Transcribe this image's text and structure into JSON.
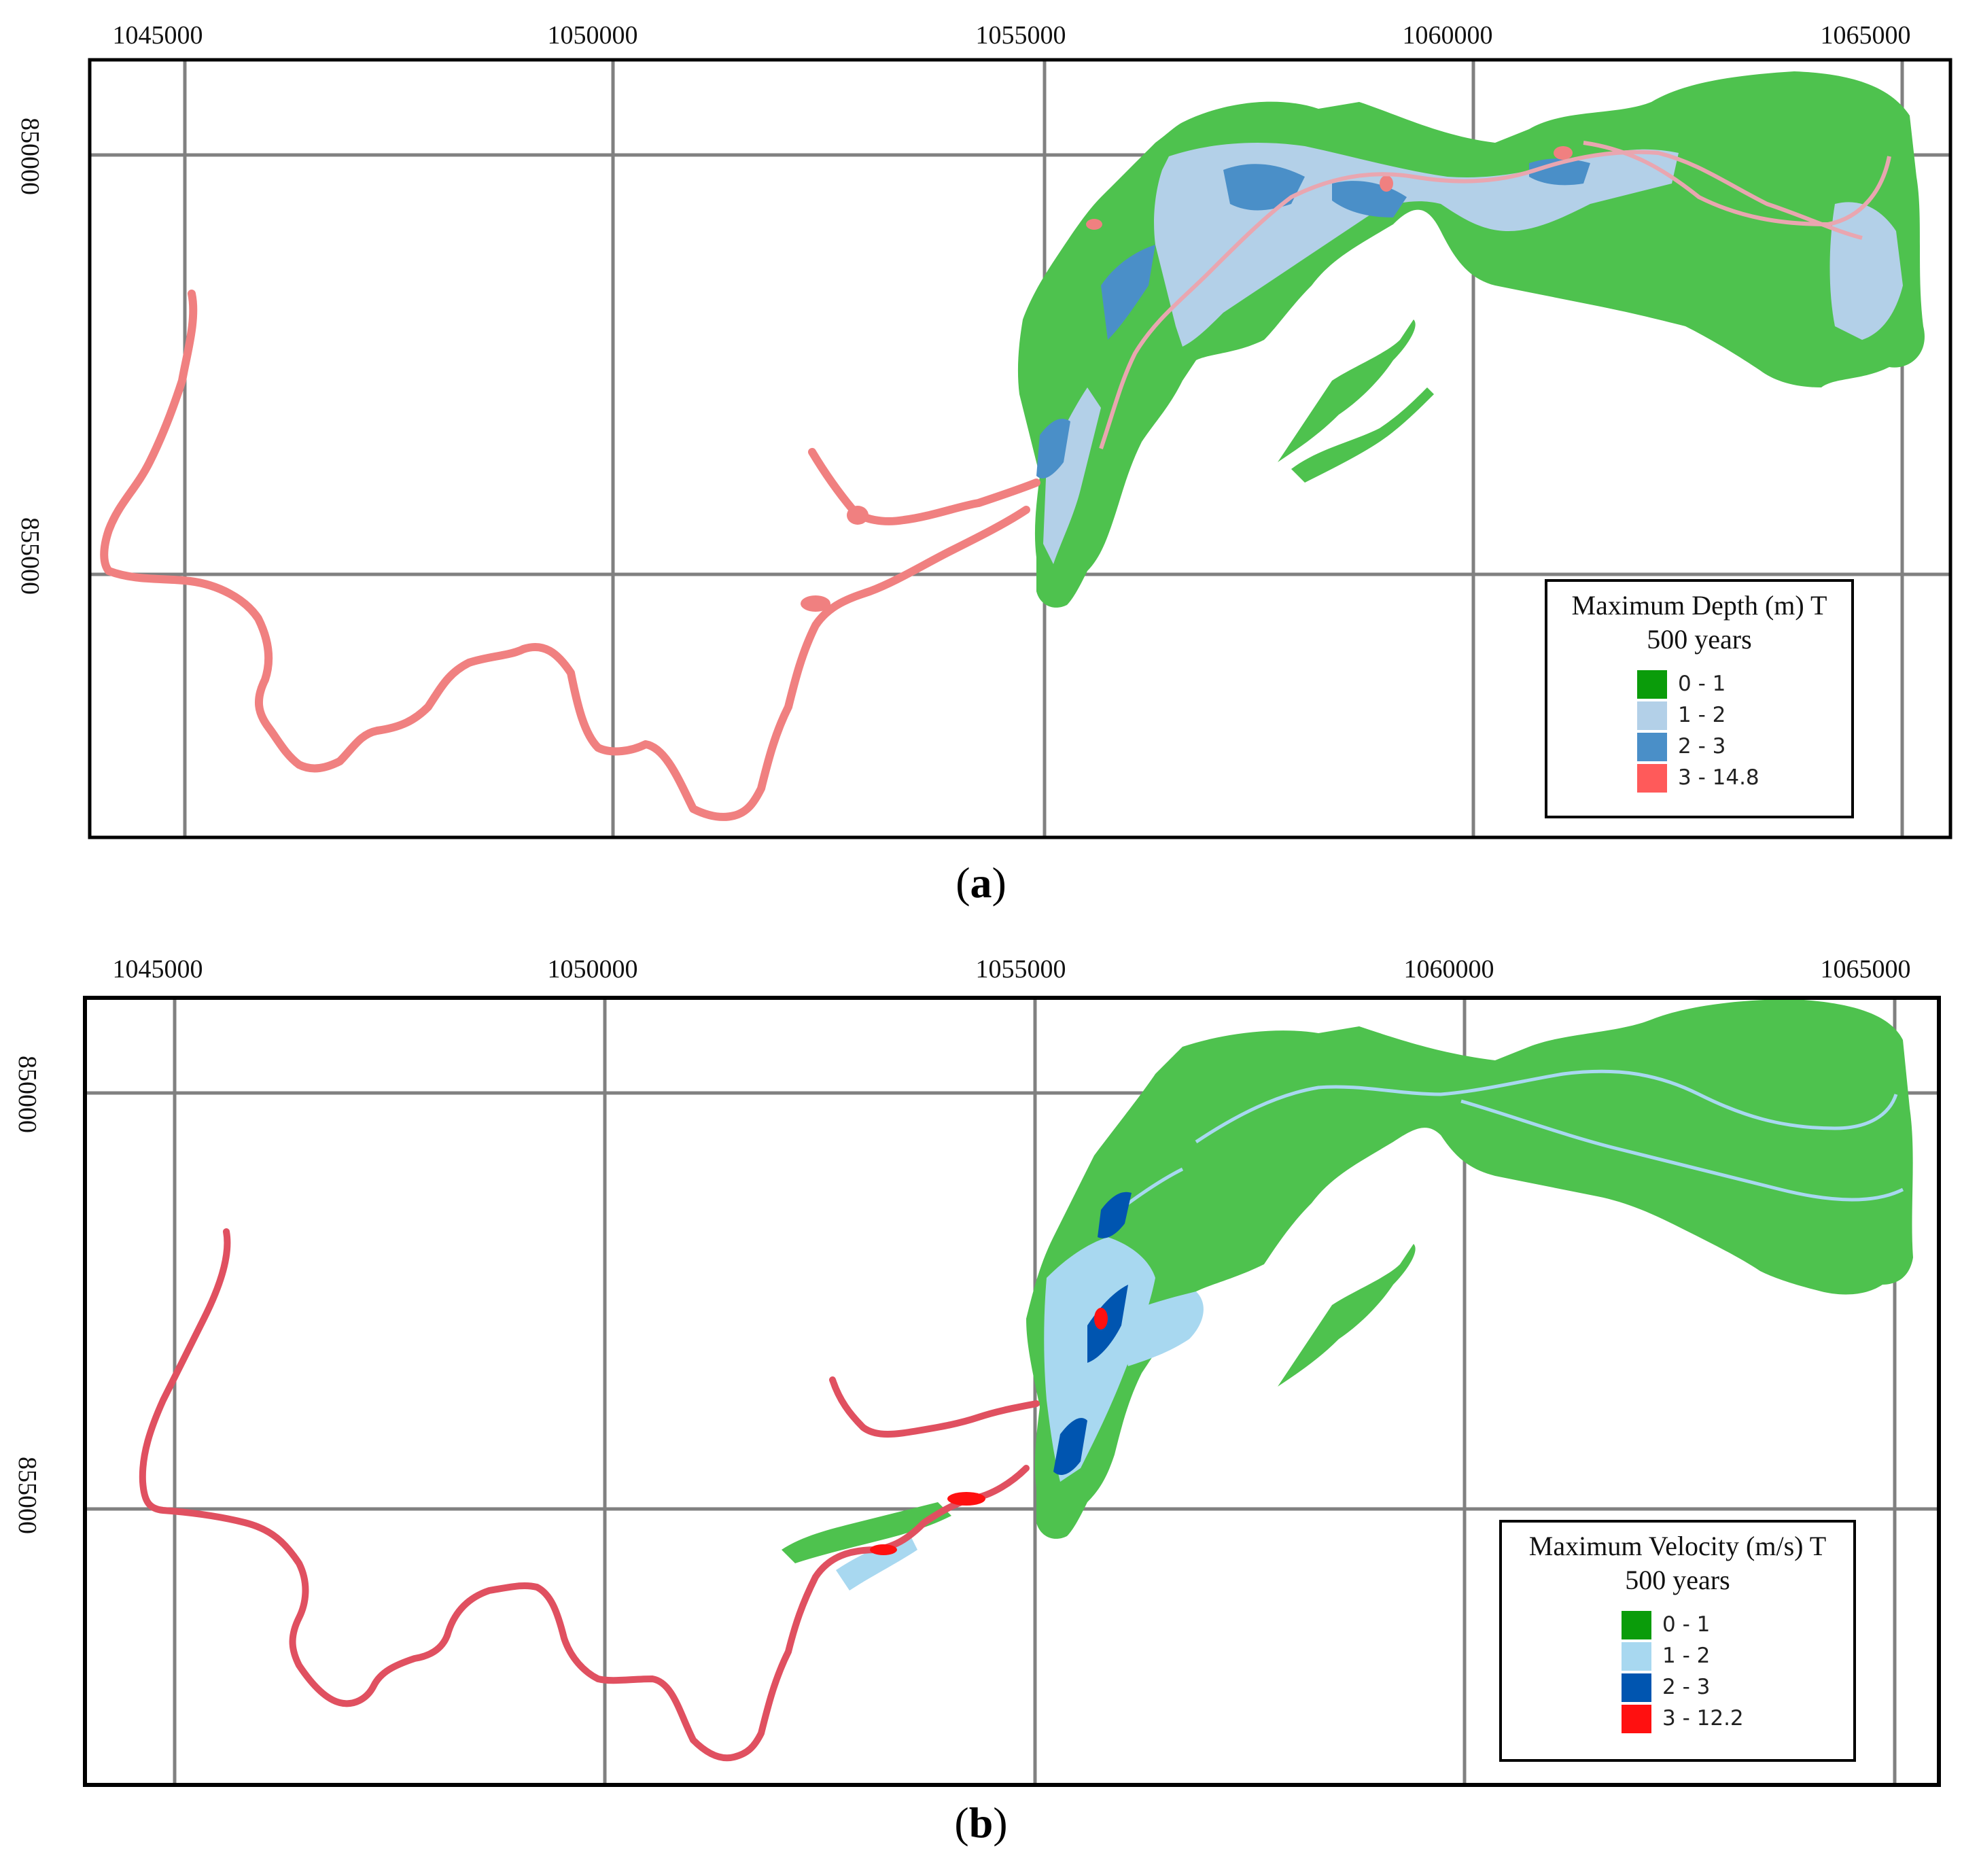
{
  "panels": [
    {
      "caption_letter": "a",
      "x_ticks": [
        "1045000",
        "1050000",
        "1055000",
        "1060000",
        "1065000"
      ],
      "y_ticks": [
        "850000",
        "855000"
      ],
      "legend": {
        "title_line1": "Maximum Depth (m) T",
        "title_line2": "500 years",
        "items": [
          {
            "label": "0 - 1",
            "color": "#0a9c0a"
          },
          {
            "label": "1 - 2",
            "color": "#b3d0e8"
          },
          {
            "label": "2 - 3",
            "color": "#4a8fc8"
          },
          {
            "label": "3 - 14.8",
            "color": "#ff5a5a"
          }
        ]
      }
    },
    {
      "caption_letter": "b",
      "x_ticks": [
        "1045000",
        "1050000",
        "1055000",
        "1060000",
        "1065000"
      ],
      "y_ticks": [
        "850000",
        "855000"
      ],
      "legend": {
        "title_line1": "Maximum Velocity (m/s) T",
        "title_line2": "500 years",
        "items": [
          {
            "label": "0 - 1",
            "color": "#0a9c0a"
          },
          {
            "label": "1 - 2",
            "color": "#a8d8f0"
          },
          {
            "label": "2 - 3",
            "color": "#0055b0"
          },
          {
            "label": "3 - 12.2",
            "color": "#ff1010"
          }
        ]
      }
    }
  ],
  "colors": {
    "flood_green": "#4ec24e",
    "grid": "#808080",
    "frame": "#000000"
  }
}
